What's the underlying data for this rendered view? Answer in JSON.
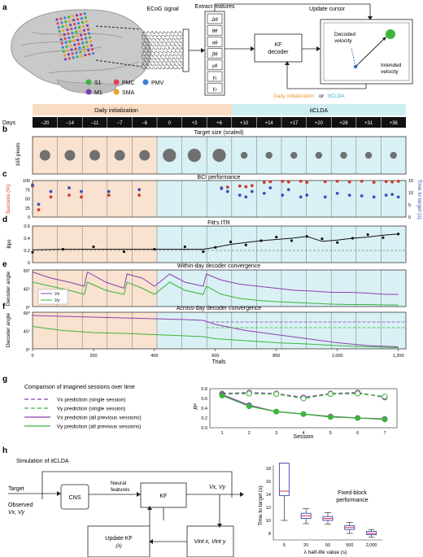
{
  "panel_letters": {
    "a": "a",
    "b": "b",
    "c": "c",
    "d": "d",
    "e": "e",
    "f": "f",
    "g": "g",
    "h": "h"
  },
  "panel_a": {
    "ecog_title": "ECoG signal",
    "extract_title": "Extract features",
    "update_cursor": "Update cursor",
    "features": [
      "Δθ",
      "θθ",
      "αθ",
      "βθ",
      "γθ",
      "γ₁",
      "γ₂"
    ],
    "kf_decoder": [
      "KF",
      "decoder"
    ],
    "decoded_velocity": [
      "Decoded",
      "velocity"
    ],
    "intended_velocity": [
      "Intended",
      "velocity"
    ],
    "legend": [
      {
        "label": "S1",
        "color": "#3cb43c"
      },
      {
        "label": "PMC",
        "color": "#e0405a"
      },
      {
        "label": "PMV",
        "color": "#3d7fd6"
      },
      {
        "label": "M1",
        "color": "#7b3fb0"
      },
      {
        "label": "SMA",
        "color": "#f0a030"
      }
    ],
    "daily_init_text": "Daily initialization",
    "or_text": "or",
    "itclda_text": "itCLDA"
  },
  "timeline": {
    "days_label": "Days",
    "daily_init_band": "Daily initialization",
    "itclda_band": "itCLDA",
    "days": [
      "−20",
      "−14",
      "−11",
      "−7",
      "−6",
      "0",
      "+3",
      "+6",
      "+10",
      "+14",
      "+17",
      "+20",
      "+28",
      "+31",
      "+36"
    ]
  },
  "panel_b": {
    "title": "Target size (scaled)",
    "ylabel": "165 pixels"
  },
  "panel_c": {
    "title": "BCI performance",
    "ylabel_left": "Success (%)",
    "ylabel_right": "Time to target (s)",
    "yticks_left": [
      "100",
      "75",
      "50",
      "25",
      "0"
    ],
    "yticks_right": [
      "15",
      "10",
      "5",
      "0"
    ]
  },
  "panel_d": {
    "title": "Fitt's ITR",
    "ylabel": "Bps",
    "yticks": [
      "0.6",
      "0.4",
      "0.2",
      "0"
    ]
  },
  "panel_e": {
    "title": "Within-day decoder convergence",
    "ylabel": "Decoder angle",
    "yticks": [
      "90°",
      "45°",
      "0°"
    ],
    "legend": [
      "Vx",
      "Vy"
    ]
  },
  "panel_f": {
    "title": "Across-day decoder convergence",
    "ylabel": "Decoder angle",
    "yticks": [
      "90°",
      "45°",
      "0°"
    ]
  },
  "trials_axis": {
    "ticks": [
      "0",
      "200",
      "400",
      "600",
      "800",
      "1,000",
      "1,200"
    ],
    "label": "Trials"
  },
  "panel_g": {
    "title": "Comparison of imagined sessions over time",
    "legend": [
      {
        "label": "Vx prediction (single session)",
        "color": "#8e3db0",
        "dashed": true
      },
      {
        "label": "Vy prediction (single session)",
        "color": "#3cb43c",
        "dashed": true
      },
      {
        "label": "Vx prediction (all previous sessions)",
        "color": "#8e3db0",
        "dashed": false
      },
      {
        "label": "Vy prediction (all previous sessions)",
        "color": "#3cb43c",
        "dashed": false
      }
    ],
    "ylabel": "R²",
    "xlabel": "Session"
  },
  "panel_h": {
    "title": "Simulation of itCLDA",
    "target": "Target",
    "observed": [
      "Observed",
      "Vx, Vy"
    ],
    "cns": "CNS",
    "neural_features": [
      "Neural",
      "features"
    ],
    "kf": "KF",
    "vxvy": "Vx, Vy",
    "update_kf": [
      "Update KF",
      "(λ)"
    ],
    "vint": "Vint x, Vint y",
    "box_title": [
      "Fixed-block",
      "performance"
    ],
    "ylabel": "Time to target (s)",
    "xlabel": "λ half-life value (s)",
    "xticks": [
      "5",
      "20",
      "50",
      "500",
      "2,000"
    ],
    "yticks": [
      "18",
      "16",
      "14",
      "12",
      "10",
      "8"
    ]
  },
  "chart_data": [
    {
      "type": "scatter",
      "title": "Target size (scaled)",
      "x_days": [
        "−20",
        "−14",
        "−11",
        "−7",
        "−6",
        "0",
        "+3",
        "+6",
        "+10",
        "+14",
        "+17",
        "+20",
        "+28",
        "+31",
        "+36"
      ],
      "target_size_rel": [
        1.0,
        1.0,
        1.0,
        1.0,
        1.0,
        1.25,
        1.25,
        1.25,
        0.65,
        0.65,
        0.65,
        0.65,
        0.65,
        0.65,
        0.65
      ]
    },
    {
      "type": "scatter",
      "title": "BCI performance",
      "series": [
        {
          "name": "Success (%)",
          "color": "#d03a2a",
          "points": [
            [
              0,
              85
            ],
            [
              20,
              20
            ],
            [
              60,
              55
            ],
            [
              120,
              60
            ],
            [
              160,
              55
            ],
            [
              250,
              60
            ],
            [
              350,
              60
            ],
            [
              620,
              80
            ],
            [
              640,
              82
            ],
            [
              680,
              85
            ],
            [
              700,
              83
            ],
            [
              720,
              86
            ],
            [
              760,
              95
            ],
            [
              780,
              97
            ],
            [
              820,
              98
            ],
            [
              840,
              96
            ],
            [
              880,
              98
            ],
            [
              900,
              95
            ],
            [
              960,
              97
            ],
            [
              1000,
              98
            ],
            [
              1040,
              96
            ],
            [
              1080,
              98
            ],
            [
              1120,
              95
            ],
            [
              1160,
              97
            ],
            [
              1180,
              96
            ],
            [
              1200,
              98
            ]
          ]
        },
        {
          "name": "Time to target (s)",
          "color": "#3b4fbf",
          "points": [
            [
              0,
              88
            ],
            [
              20,
              35
            ],
            [
              60,
              70
            ],
            [
              120,
              80
            ],
            [
              160,
              70
            ],
            [
              250,
              70
            ],
            [
              350,
              75
            ],
            [
              620,
              78
            ],
            [
              640,
              70
            ],
            [
              680,
              60
            ],
            [
              700,
              55
            ],
            [
              720,
              70
            ],
            [
              760,
              65
            ],
            [
              780,
              80
            ],
            [
              820,
              60
            ],
            [
              840,
              75
            ],
            [
              880,
              55
            ],
            [
              900,
              60
            ],
            [
              960,
              55
            ],
            [
              1000,
              65
            ],
            [
              1040,
              60
            ],
            [
              1080,
              58
            ],
            [
              1120,
              55
            ],
            [
              1160,
              60
            ],
            [
              1180,
              62
            ],
            [
              1200,
              55
            ]
          ]
        }
      ],
      "ylim": [
        0,
        100
      ]
    },
    {
      "type": "line",
      "title": "Fitt's ITR",
      "ylabel": "Bps",
      "x": [
        0,
        100,
        200,
        300,
        400,
        500,
        560,
        600,
        650,
        700,
        750,
        800,
        850,
        900,
        950,
        1000,
        1050,
        1100,
        1150,
        1200
      ],
      "values": [
        0.21,
        0.22,
        0.22,
        0.22,
        0.22,
        0.22,
        0.22,
        0.25,
        0.3,
        0.33,
        0.36,
        0.38,
        0.4,
        0.43,
        0.35,
        0.37,
        0.4,
        0.42,
        0.45,
        0.47
      ],
      "baseline": 0.2,
      "ylim": [
        0,
        0.6
      ]
    },
    {
      "type": "line",
      "title": "Within-day decoder convergence",
      "series": [
        {
          "name": "Vx",
          "color": "#8e3db0",
          "x": [
            0,
            60,
            120,
            170,
            180,
            240,
            300,
            310,
            360,
            400,
            450,
            500,
            560,
            570,
            620,
            680,
            740,
            800,
            860,
            920,
            980,
            1040,
            1100,
            1160,
            1200
          ],
          "values": [
            85,
            70,
            60,
            50,
            85,
            60,
            45,
            80,
            70,
            50,
            80,
            60,
            50,
            80,
            65,
            55,
            50,
            45,
            40,
            38,
            35,
            35,
            33,
            30,
            30
          ]
        },
        {
          "name": "Vy",
          "color": "#3cb43c",
          "x": [
            0,
            60,
            120,
            170,
            180,
            240,
            300,
            310,
            360,
            400,
            450,
            500,
            560,
            570,
            620,
            680,
            740,
            800,
            860,
            920,
            980,
            1040,
            1100,
            1160,
            1200
          ],
          "values": [
            60,
            50,
            40,
            30,
            60,
            40,
            30,
            60,
            45,
            30,
            60,
            40,
            30,
            50,
            30,
            20,
            15,
            12,
            10,
            8,
            6,
            5,
            5,
            4,
            4
          ]
        }
      ],
      "ylim": [
        0,
        90
      ]
    },
    {
      "type": "line",
      "title": "Across-day decoder convergence",
      "series": [
        {
          "name": "Vx",
          "color": "#8e3db0",
          "x": [
            0,
            100,
            200,
            300,
            400,
            500,
            560,
            600,
            700,
            800,
            900,
            1000,
            1100,
            1200
          ],
          "values": [
            82,
            80,
            78,
            76,
            74,
            72,
            70,
            60,
            45,
            35,
            25,
            15,
            8,
            5
          ]
        },
        {
          "name": "Vy",
          "color": "#3cb43c",
          "x": [
            0,
            100,
            200,
            300,
            400,
            500,
            560,
            600,
            700,
            800,
            900,
            1000,
            1100,
            1200
          ],
          "values": [
            55,
            45,
            40,
            38,
            35,
            32,
            30,
            25,
            20,
            15,
            12,
            8,
            5,
            3
          ]
        }
      ],
      "reference_lines": [
        {
          "name": "Vx",
          "value": 66
        },
        {
          "name": "Vy",
          "value": 52
        }
      ],
      "ylim": [
        0,
        90
      ]
    },
    {
      "type": "line",
      "title": "Comparison of imagined sessions over time",
      "xlabel": "Session",
      "ylabel": "R²",
      "x": [
        1,
        2,
        3,
        4,
        5,
        6,
        7
      ],
      "series": [
        {
          "name": "Vx prediction (single session)",
          "values": [
            0.7,
            0.72,
            0.7,
            0.62,
            0.7,
            0.72,
            0.62
          ]
        },
        {
          "name": "Vy prediction (single session)",
          "values": [
            0.69,
            0.7,
            0.69,
            0.6,
            0.69,
            0.7,
            0.64
          ]
        },
        {
          "name": "Vx prediction (all previous sessions)",
          "values": [
            0.68,
            0.46,
            0.33,
            0.28,
            0.23,
            0.2,
            0.18
          ]
        },
        {
          "name": "Vy prediction (all previous sessions)",
          "values": [
            0.66,
            0.44,
            0.33,
            0.28,
            0.22,
            0.2,
            0.17
          ]
        }
      ],
      "ylim": [
        0,
        0.8
      ],
      "yticks": [
        0,
        0.2,
        0.4,
        0.6,
        0.8
      ]
    },
    {
      "type": "box",
      "title": "Fixed-block performance",
      "xlabel": "λ half-life value (s)",
      "ylabel": "Time to target (s)",
      "categories": [
        "5",
        "20",
        "50",
        "500",
        "2,000"
      ],
      "boxes": [
        {
          "min": 10.0,
          "q1": 13.8,
          "median": 14.5,
          "q3": 18.8,
          "max": 18.8
        },
        {
          "min": 9.5,
          "q1": 10.3,
          "median": 10.7,
          "q3": 11.1,
          "max": 11.8
        },
        {
          "min": 9.4,
          "q1": 10.0,
          "median": 10.3,
          "q3": 10.6,
          "max": 11.2
        },
        {
          "min": 8.0,
          "q1": 8.6,
          "median": 8.9,
          "q3": 9.2,
          "max": 9.7
        },
        {
          "min": 7.4,
          "q1": 7.8,
          "median": 8.0,
          "q3": 8.3,
          "max": 8.6
        }
      ],
      "ylim": [
        7,
        18.5
      ]
    }
  ]
}
